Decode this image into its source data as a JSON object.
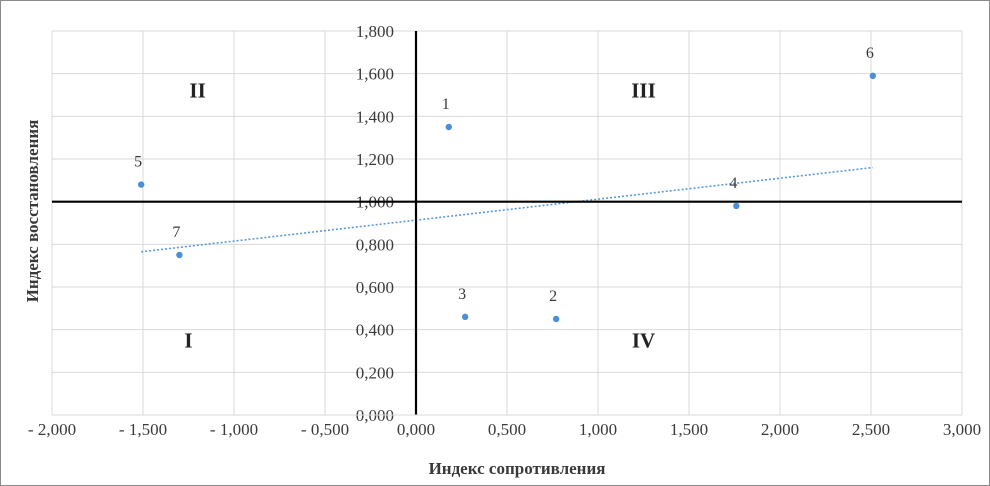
{
  "chart_data": {
    "type": "scatter",
    "title": "",
    "xlabel": "Индекс сопротивления",
    "ylabel": "Индекс восстановления",
    "xlim": [
      -2.0,
      3.0
    ],
    "ylim": [
      0.0,
      1.8
    ],
    "x_ticks": [
      -2.0,
      -1.5,
      -1.0,
      -0.5,
      0.0,
      0.5,
      1.0,
      1.5,
      2.0,
      2.5,
      3.0
    ],
    "x_tick_labels": [
      "- 2,000",
      "- 1,500",
      "- 1,000",
      "- 0,500",
      "0,000",
      "0,500",
      "1,000",
      "1,500",
      "2,000",
      "2,500",
      "3,000"
    ],
    "y_ticks": [
      0.0,
      0.2,
      0.4,
      0.6,
      0.8,
      1.0,
      1.2,
      1.4,
      1.6,
      1.8
    ],
    "y_tick_labels": [
      "0,000",
      "0,200",
      "0,400",
      "0,600",
      "0,800",
      "1,000",
      "1,200",
      "1,400",
      "1,600",
      "1,800"
    ],
    "grid": true,
    "quadrant_lines": {
      "x": 0.0,
      "y": 1.0
    },
    "quadrant_labels": [
      {
        "text": "II",
        "x": -1.2,
        "y": 1.52
      },
      {
        "text": "III",
        "x": 1.25,
        "y": 1.52
      },
      {
        "text": "I",
        "x": -1.25,
        "y": 0.35
      },
      {
        "text": "IV",
        "x": 1.25,
        "y": 0.35
      }
    ],
    "points": [
      {
        "label": "1",
        "x": 0.18,
        "y": 1.35
      },
      {
        "label": "2",
        "x": 0.77,
        "y": 0.45
      },
      {
        "label": "3",
        "x": 0.27,
        "y": 0.46
      },
      {
        "label": "4",
        "x": 1.76,
        "y": 0.98
      },
      {
        "label": "5",
        "x": -1.51,
        "y": 1.08
      },
      {
        "label": "6",
        "x": 2.51,
        "y": 1.59
      },
      {
        "label": "7",
        "x": -1.3,
        "y": 0.75
      }
    ],
    "trendline": {
      "x": [
        -1.51,
        2.51
      ],
      "y": [
        0.765,
        1.16
      ]
    },
    "colors": {
      "points": "#4a90d9",
      "trendline": "#5b9bd5",
      "grid": "#d9d9d9",
      "axes": "#000000"
    }
  }
}
